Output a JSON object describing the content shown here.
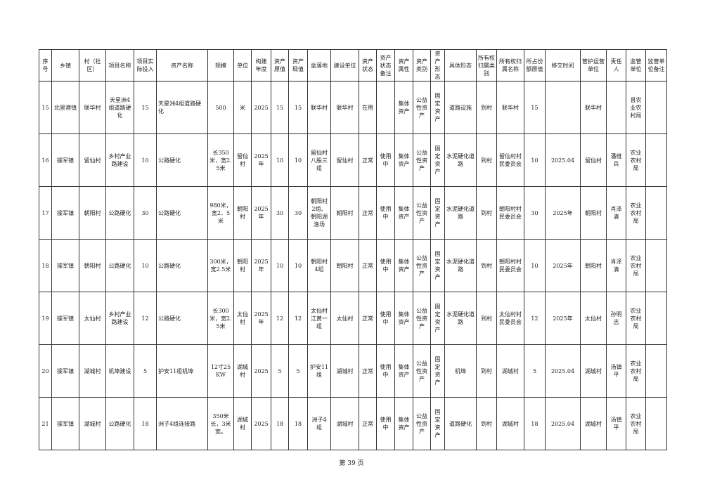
{
  "table": {
    "headers": [
      "序号",
      "乡镇",
      "村（社区）",
      "项目名称",
      "项目实际投入",
      "资产名称",
      "规模",
      "单位",
      "构建年度",
      "资产原值",
      "资产现值",
      "坐落地",
      "建设单位",
      "资产状态",
      "资产状态备注",
      "资产属性",
      "资产类别",
      "资产形态",
      "具体形态",
      "所有权归属类别",
      "所有权归属名称",
      "所占份额原值",
      "移交时间",
      "管护运营单位",
      "责任人",
      "监管单位",
      "监管单位备注"
    ],
    "rows": [
      [
        "15",
        "北景港镇",
        "联华村",
        "天星洲4组道路硬化",
        "15",
        "天星洲4组道路硬化",
        "500",
        "米",
        "2025",
        "15",
        "15",
        "联华村",
        "联华村",
        "在用",
        "",
        "集体资产",
        "公益性资产",
        "固定资产",
        "道路设施",
        "到村",
        "联华村",
        "15",
        "",
        "联华村",
        "",
        "县农业农村局",
        ""
      ],
      [
        "16",
        "操军镇",
        "留仙村",
        "乡村产业路建设",
        "10",
        "公路硬化",
        "长350米，宽2.5米",
        "留仙村",
        "2025年",
        "10",
        "10",
        "留仙村八股三组",
        "留仙村",
        "正常",
        "使用中",
        "集体资产",
        "公益性资产",
        "固定资产",
        "水泥硬化道路",
        "到村",
        "留仙村村民委员会",
        "10",
        "2025.04",
        "留仙村",
        "潘维兵",
        "农业农村局",
        ""
      ],
      [
        "17",
        "操军镇",
        "朝阳村",
        "公路硬化",
        "30",
        "公路硬化",
        "980米，宽2．5米",
        "朝阳村",
        "2025年",
        "30",
        "30",
        "朝阳村2组、朝阳湖渔场",
        "朝阳村",
        "正常",
        "使用中",
        "集体资产",
        "公益性资产",
        "固定资产",
        "水泥硬化道路",
        "到村",
        "朝阳村村民委员会",
        "30",
        "2025年",
        "朝阳村",
        "肖泽清",
        "农业农村局",
        ""
      ],
      [
        "18",
        "操军镇",
        "朝阳村",
        "公路硬化",
        "10",
        "公路硬化",
        "300米，宽2.5米",
        "朝阳村",
        "2025年",
        "10",
        "10",
        "朝阳村4组",
        "朝阳村",
        "正常",
        "使用中",
        "集体资产",
        "公益性资产",
        "固定资产",
        "水泥硬化道路",
        "到村",
        "朝阳村村民委员会",
        "10",
        "2025年",
        "朝阳村",
        "肖泽清",
        "农业农村局",
        ""
      ],
      [
        "19",
        "操军镇",
        "太仙村",
        "乡村产业路建设",
        "12",
        "公路硬化",
        "长300米，宽2.5米",
        "太仙村",
        "2025年",
        "12",
        "12",
        "太仙村江黄一组",
        "太仙村",
        "正常",
        "使用中",
        "集体资产",
        "公益性资产",
        "固定资产",
        "水泥硬化道路",
        "到村",
        "太仙村村民委员会",
        "12",
        "2025年",
        "太仙村",
        "孙明志",
        "农业农村局",
        ""
      ],
      [
        "20",
        "操军镇",
        "湖城村",
        "机埠建设",
        "5",
        "护安11组机埠",
        "12寸25KW",
        "湖城村",
        "2025",
        "5",
        "5",
        "护安11组",
        "湖城村",
        "正常",
        "使用中",
        "集体资产",
        "公益性资产",
        "固定资产",
        "机埠",
        "到村",
        "湖城村",
        "5",
        "2025.04",
        "湖城村",
        "汤镇平",
        "农业农村局",
        ""
      ],
      [
        "21",
        "操军镇",
        "湖城村",
        "公路硬化",
        "18",
        "洲子4组连接路",
        "350米长，3米宽。",
        "湖城村",
        "2025",
        "18",
        "18",
        "洲子4组",
        "湖城村",
        "正常",
        "使用中",
        "集体资产",
        "公益性资产",
        "固定资产",
        "道路硬化",
        "到村",
        "湖城村",
        "18",
        "2025.04",
        "湖城村",
        "汤镇平",
        "农业农村局",
        ""
      ]
    ]
  },
  "footer": {
    "page_label": "第 39 页"
  }
}
